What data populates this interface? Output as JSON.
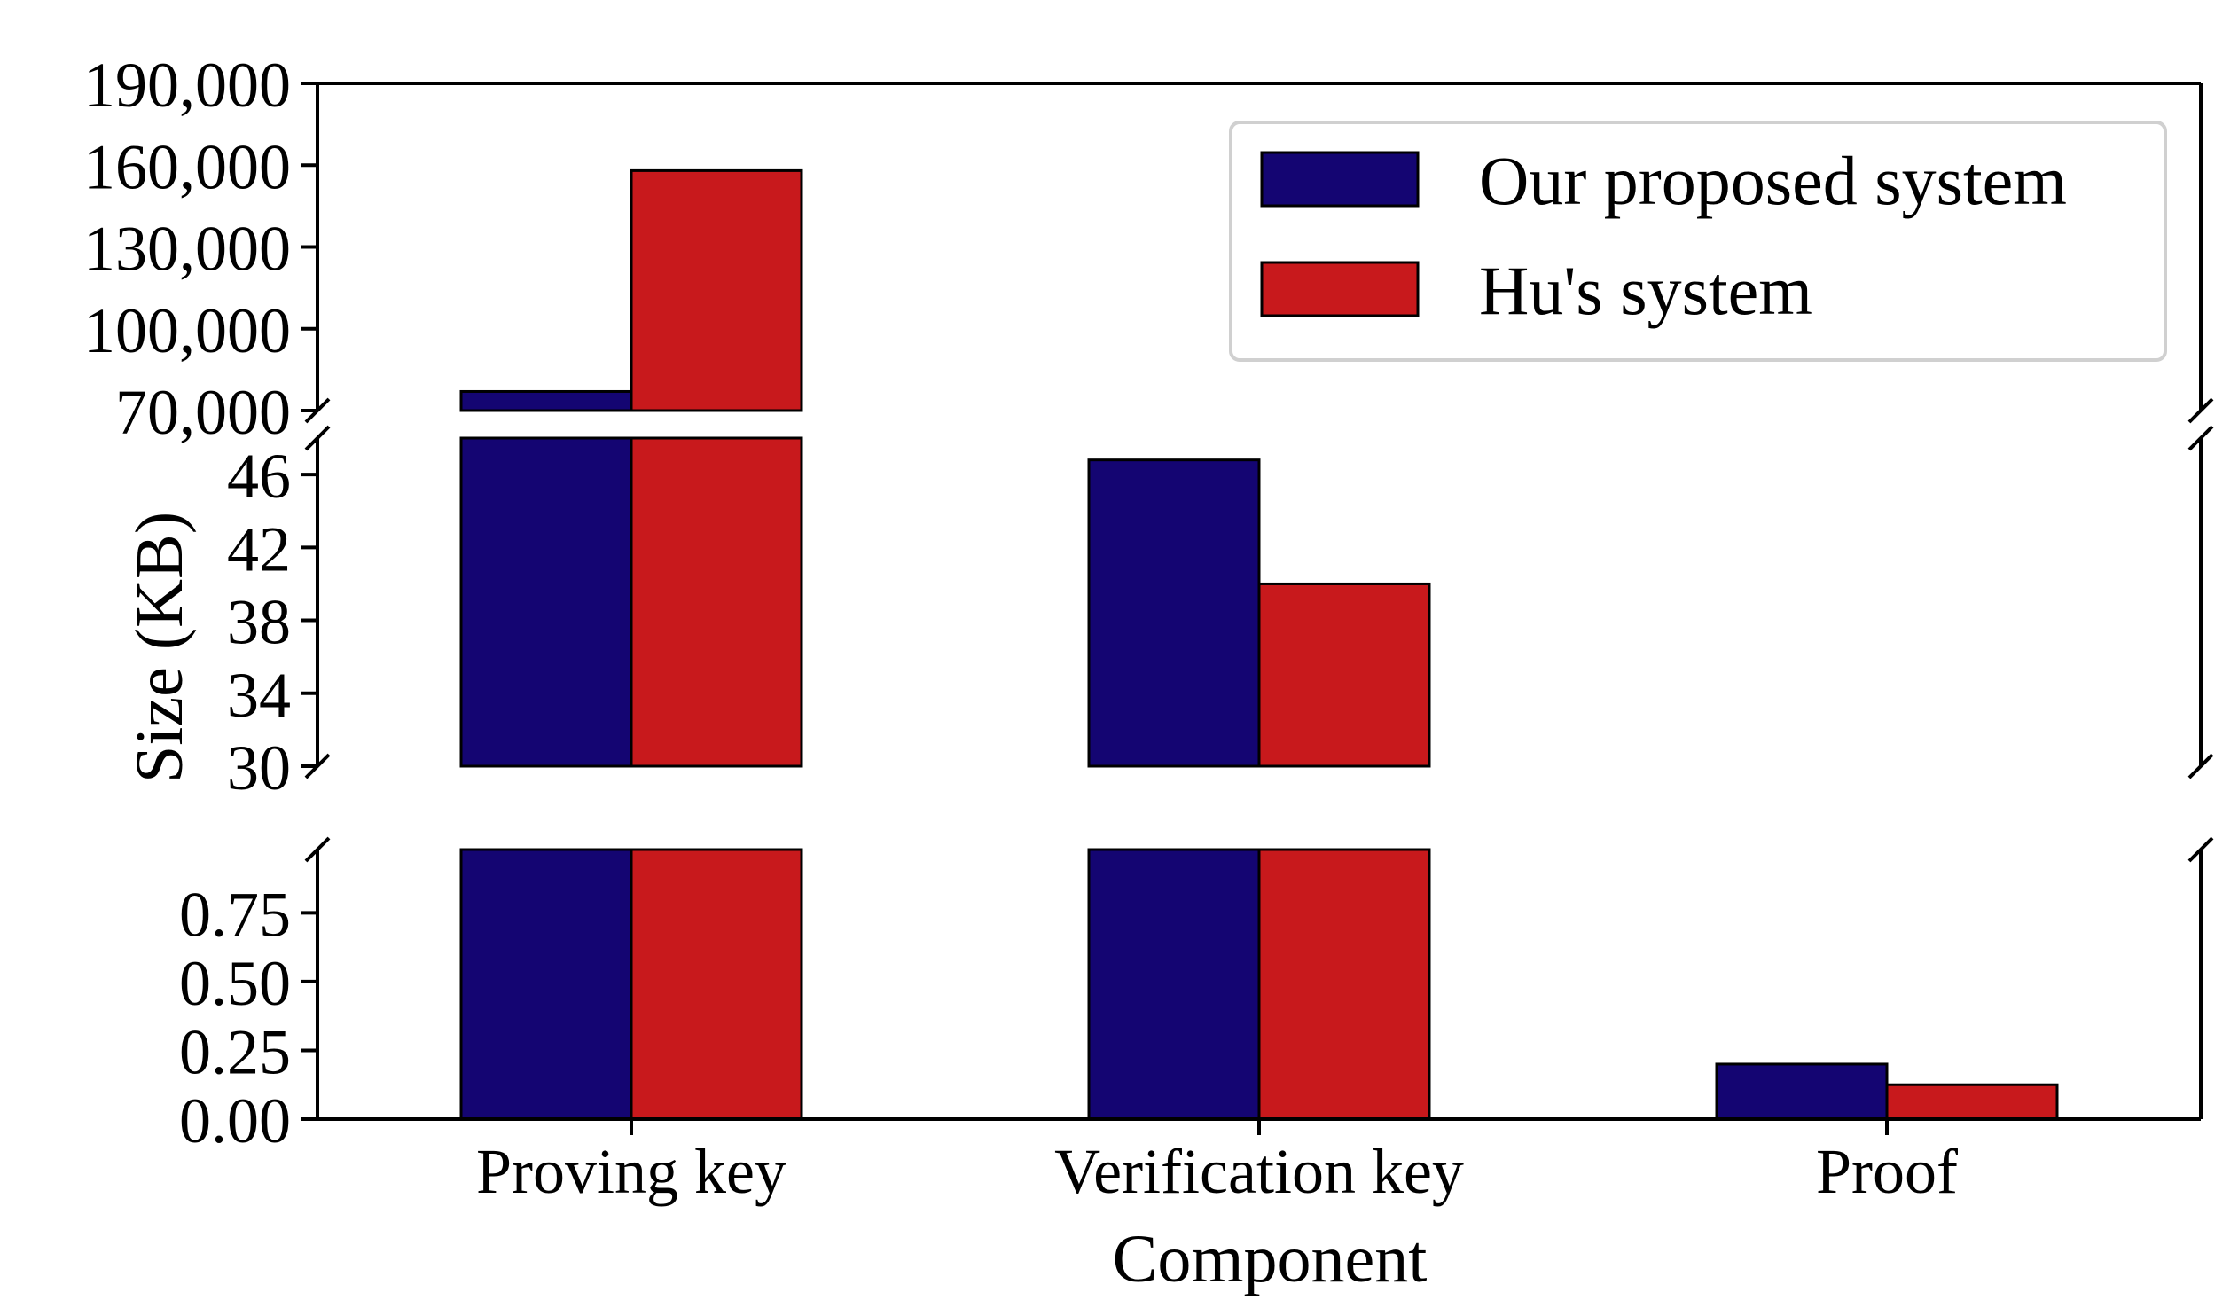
{
  "chart_data": {
    "type": "bar",
    "title": "",
    "xlabel": "Component",
    "ylabel": "Size (KB)",
    "categories": [
      "Proving key",
      "Verification key",
      "Proof"
    ],
    "series": [
      {
        "name": "Our proposed system",
        "color": "#140572",
        "values": [
          77000,
          46.8,
          0.2
        ]
      },
      {
        "name": "Hu's system",
        "color": "#c8191c",
        "values": [
          158000,
          40,
          0.125
        ]
      }
    ],
    "y_segments": [
      {
        "ylim": [
          0,
          0.98
        ],
        "ticks": [
          "0.00",
          "0.25",
          "0.50",
          "0.75"
        ]
      },
      {
        "ylim": [
          30,
          48
        ],
        "ticks": [
          "30",
          "34",
          "38",
          "42",
          "46"
        ]
      },
      {
        "ylim": [
          70000,
          190000
        ],
        "ticks": [
          "70,000",
          "100,000",
          "130,000",
          "160,000",
          "190,000"
        ]
      }
    ],
    "legend_placement": "upper-right",
    "grid": false,
    "broken_axis": true
  }
}
